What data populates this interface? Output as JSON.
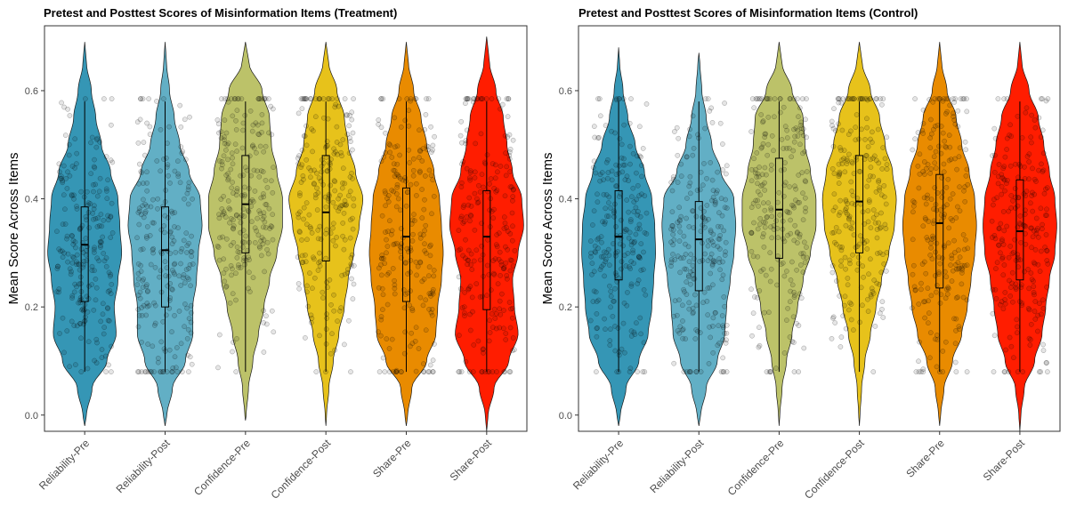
{
  "chart_data": [
    {
      "type": "violin",
      "title": "Pretest and Posttest Scores of Misinformation Items (Treatment)",
      "xlabel": "",
      "ylabel": "Mean Score Across Items",
      "ylim": [
        -0.03,
        0.72
      ],
      "yticks": [
        "0.0",
        "0.2",
        "0.4",
        "0.6"
      ],
      "categories": [
        "Reliability-Pre",
        "Reliability-Post",
        "Confidence-Pre",
        "Confidence-Post",
        "Share-Pre",
        "Share-Post"
      ],
      "colors": [
        "#3596b5",
        "#62afc5",
        "#bcc269",
        "#e7c21b",
        "#e98b00",
        "#ff1d00"
      ],
      "violin_range": [
        [
          -0.02,
          0.69
        ],
        [
          -0.02,
          0.69
        ],
        [
          -0.01,
          0.69
        ],
        [
          -0.02,
          0.69
        ],
        [
          -0.02,
          0.69
        ],
        [
          -0.03,
          0.7
        ]
      ],
      "density_profile": [
        [
          [
            0.0,
            0.05
          ],
          [
            0.05,
            0.2
          ],
          [
            0.1,
            0.6
          ],
          [
            0.15,
            0.85
          ],
          [
            0.2,
            0.8
          ],
          [
            0.25,
            0.9
          ],
          [
            0.3,
            1.0
          ],
          [
            0.35,
            0.95
          ],
          [
            0.4,
            0.9
          ],
          [
            0.45,
            0.7
          ],
          [
            0.5,
            0.45
          ],
          [
            0.55,
            0.3
          ],
          [
            0.6,
            0.18
          ],
          [
            0.65,
            0.05
          ]
        ],
        [
          [
            0.0,
            0.05
          ],
          [
            0.05,
            0.2
          ],
          [
            0.1,
            0.55
          ],
          [
            0.15,
            0.75
          ],
          [
            0.2,
            0.75
          ],
          [
            0.25,
            0.85
          ],
          [
            0.3,
            0.9
          ],
          [
            0.35,
            1.0
          ],
          [
            0.4,
            0.95
          ],
          [
            0.45,
            0.65
          ],
          [
            0.5,
            0.4
          ],
          [
            0.55,
            0.25
          ],
          [
            0.6,
            0.12
          ],
          [
            0.65,
            0.04
          ]
        ],
        [
          [
            0.0,
            0.02
          ],
          [
            0.05,
            0.08
          ],
          [
            0.1,
            0.2
          ],
          [
            0.15,
            0.35
          ],
          [
            0.2,
            0.5
          ],
          [
            0.25,
            0.65
          ],
          [
            0.3,
            0.85
          ],
          [
            0.35,
            1.0
          ],
          [
            0.4,
            1.0
          ],
          [
            0.45,
            0.85
          ],
          [
            0.5,
            0.7
          ],
          [
            0.55,
            0.65
          ],
          [
            0.6,
            0.45
          ],
          [
            0.65,
            0.1
          ]
        ],
        [
          [
            0.0,
            0.02
          ],
          [
            0.05,
            0.08
          ],
          [
            0.1,
            0.2
          ],
          [
            0.15,
            0.35
          ],
          [
            0.2,
            0.5
          ],
          [
            0.25,
            0.6
          ],
          [
            0.3,
            0.75
          ],
          [
            0.35,
            0.9
          ],
          [
            0.4,
            1.0
          ],
          [
            0.45,
            0.8
          ],
          [
            0.5,
            0.6
          ],
          [
            0.55,
            0.5
          ],
          [
            0.6,
            0.3
          ],
          [
            0.65,
            0.08
          ]
        ],
        [
          [
            0.0,
            0.04
          ],
          [
            0.05,
            0.15
          ],
          [
            0.1,
            0.55
          ],
          [
            0.15,
            0.8
          ],
          [
            0.2,
            0.85
          ],
          [
            0.25,
            0.95
          ],
          [
            0.3,
            1.0
          ],
          [
            0.35,
            0.95
          ],
          [
            0.4,
            0.9
          ],
          [
            0.45,
            0.75
          ],
          [
            0.5,
            0.55
          ],
          [
            0.55,
            0.4
          ],
          [
            0.6,
            0.2
          ],
          [
            0.65,
            0.06
          ]
        ],
        [
          [
            0.0,
            0.04
          ],
          [
            0.05,
            0.2
          ],
          [
            0.1,
            0.6
          ],
          [
            0.15,
            0.85
          ],
          [
            0.2,
            0.75
          ],
          [
            0.25,
            0.7
          ],
          [
            0.3,
            0.85
          ],
          [
            0.35,
            1.0
          ],
          [
            0.4,
            0.95
          ],
          [
            0.45,
            0.7
          ],
          [
            0.5,
            0.55
          ],
          [
            0.55,
            0.45
          ],
          [
            0.6,
            0.25
          ],
          [
            0.65,
            0.08
          ]
        ]
      ],
      "box": [
        {
          "q1": 0.21,
          "median": 0.315,
          "q3": 0.385,
          "wlo": 0.08,
          "whi": 0.58
        },
        {
          "q1": 0.2,
          "median": 0.305,
          "q3": 0.385,
          "wlo": 0.08,
          "whi": 0.58
        },
        {
          "q1": 0.3,
          "median": 0.39,
          "q3": 0.48,
          "wlo": 0.08,
          "whi": 0.58
        },
        {
          "q1": 0.285,
          "median": 0.375,
          "q3": 0.48,
          "wlo": 0.08,
          "whi": 0.58
        },
        {
          "q1": 0.21,
          "median": 0.33,
          "q3": 0.42,
          "wlo": 0.08,
          "whi": 0.58
        },
        {
          "q1": 0.195,
          "median": 0.33,
          "q3": 0.415,
          "wlo": 0.08,
          "whi": 0.58
        }
      ],
      "grid": false,
      "legend": "none"
    },
    {
      "type": "violin",
      "title": "Pretest and Posttest Scores of Misinformation Items (Control)",
      "xlabel": "",
      "ylabel": "Mean Score Across Items",
      "ylim": [
        -0.03,
        0.72
      ],
      "yticks": [
        "0.0",
        "0.2",
        "0.4",
        "0.6"
      ],
      "categories": [
        "Reliability-Pre",
        "Reliability-Post",
        "Confidence-Pre",
        "Confidence-Post",
        "Share-Pre",
        "Share-Post"
      ],
      "colors": [
        "#3596b5",
        "#62afc5",
        "#bcc269",
        "#e7c21b",
        "#e98b00",
        "#ff1d00"
      ],
      "violin_range": [
        [
          -0.02,
          0.68
        ],
        [
          -0.02,
          0.67
        ],
        [
          -0.02,
          0.69
        ],
        [
          -0.02,
          0.69
        ],
        [
          -0.02,
          0.69
        ],
        [
          -0.03,
          0.69
        ]
      ],
      "density_profile": [
        [
          [
            0.0,
            0.05
          ],
          [
            0.05,
            0.2
          ],
          [
            0.1,
            0.55
          ],
          [
            0.15,
            0.8
          ],
          [
            0.2,
            0.9
          ],
          [
            0.25,
            0.95
          ],
          [
            0.3,
            1.0
          ],
          [
            0.35,
            0.98
          ],
          [
            0.4,
            0.9
          ],
          [
            0.45,
            0.7
          ],
          [
            0.5,
            0.45
          ],
          [
            0.55,
            0.25
          ],
          [
            0.6,
            0.12
          ],
          [
            0.65,
            0.03
          ]
        ],
        [
          [
            0.0,
            0.05
          ],
          [
            0.05,
            0.2
          ],
          [
            0.1,
            0.5
          ],
          [
            0.15,
            0.7
          ],
          [
            0.2,
            0.75
          ],
          [
            0.25,
            0.85
          ],
          [
            0.3,
            0.95
          ],
          [
            0.35,
            1.0
          ],
          [
            0.4,
            0.95
          ],
          [
            0.45,
            0.6
          ],
          [
            0.5,
            0.35
          ],
          [
            0.55,
            0.2
          ],
          [
            0.6,
            0.08
          ],
          [
            0.65,
            0.03
          ]
        ],
        [
          [
            0.0,
            0.02
          ],
          [
            0.05,
            0.08
          ],
          [
            0.1,
            0.2
          ],
          [
            0.15,
            0.35
          ],
          [
            0.2,
            0.5
          ],
          [
            0.25,
            0.65
          ],
          [
            0.3,
            0.85
          ],
          [
            0.35,
            1.0
          ],
          [
            0.4,
            1.0
          ],
          [
            0.45,
            0.85
          ],
          [
            0.5,
            0.7
          ],
          [
            0.55,
            0.65
          ],
          [
            0.6,
            0.35
          ],
          [
            0.65,
            0.08
          ]
        ],
        [
          [
            0.0,
            0.02
          ],
          [
            0.05,
            0.06
          ],
          [
            0.1,
            0.15
          ],
          [
            0.15,
            0.3
          ],
          [
            0.2,
            0.45
          ],
          [
            0.25,
            0.6
          ],
          [
            0.3,
            0.8
          ],
          [
            0.35,
            0.95
          ],
          [
            0.4,
            1.0
          ],
          [
            0.45,
            0.9
          ],
          [
            0.5,
            0.7
          ],
          [
            0.55,
            0.55
          ],
          [
            0.6,
            0.3
          ],
          [
            0.65,
            0.08
          ]
        ],
        [
          [
            0.0,
            0.03
          ],
          [
            0.05,
            0.12
          ],
          [
            0.1,
            0.35
          ],
          [
            0.15,
            0.6
          ],
          [
            0.2,
            0.75
          ],
          [
            0.25,
            0.85
          ],
          [
            0.3,
            0.95
          ],
          [
            0.35,
            1.0
          ],
          [
            0.4,
            0.95
          ],
          [
            0.45,
            0.8
          ],
          [
            0.5,
            0.6
          ],
          [
            0.55,
            0.45
          ],
          [
            0.6,
            0.2
          ],
          [
            0.65,
            0.06
          ]
        ],
        [
          [
            0.0,
            0.03
          ],
          [
            0.05,
            0.12
          ],
          [
            0.1,
            0.4
          ],
          [
            0.15,
            0.6
          ],
          [
            0.2,
            0.7
          ],
          [
            0.25,
            0.8
          ],
          [
            0.3,
            0.95
          ],
          [
            0.35,
            1.0
          ],
          [
            0.4,
            0.95
          ],
          [
            0.45,
            0.8
          ],
          [
            0.5,
            0.65
          ],
          [
            0.55,
            0.5
          ],
          [
            0.6,
            0.25
          ],
          [
            0.65,
            0.06
          ]
        ]
      ],
      "box": [
        {
          "q1": 0.25,
          "median": 0.33,
          "q3": 0.415,
          "wlo": 0.08,
          "whi": 0.58
        },
        {
          "q1": 0.23,
          "median": 0.325,
          "q3": 0.395,
          "wlo": 0.08,
          "whi": 0.58
        },
        {
          "q1": 0.29,
          "median": 0.38,
          "q3": 0.475,
          "wlo": 0.08,
          "whi": 0.58
        },
        {
          "q1": 0.3,
          "median": 0.395,
          "q3": 0.48,
          "wlo": 0.08,
          "whi": 0.58
        },
        {
          "q1": 0.235,
          "median": 0.355,
          "q3": 0.445,
          "wlo": 0.08,
          "whi": 0.58
        },
        {
          "q1": 0.25,
          "median": 0.34,
          "q3": 0.435,
          "wlo": 0.08,
          "whi": 0.58
        }
      ],
      "grid": false,
      "legend": "none"
    }
  ]
}
